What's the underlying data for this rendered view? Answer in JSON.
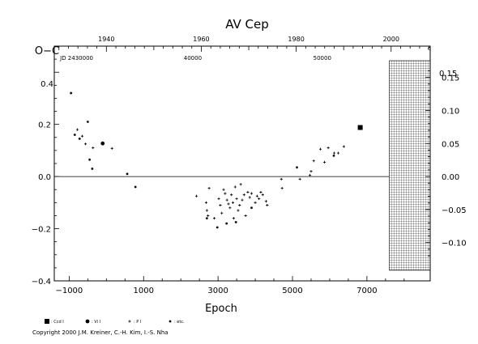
{
  "chart_data": {
    "type": "scatter",
    "title": "AV Cep",
    "xlabel": "Epoch",
    "ylabel": "O−C",
    "xlim": [
      -1400,
      8700
    ],
    "ylim": [
      -0.4,
      0.5
    ],
    "x_ticks": [
      {
        "value": -1000,
        "label": "−1000"
      },
      {
        "value": 1000,
        "label": "1000"
      },
      {
        "value": 3000,
        "label": "3000"
      },
      {
        "value": 5000,
        "label": "5000"
      },
      {
        "value": 7000,
        "label": "7000"
      }
    ],
    "y_ticks": [
      {
        "value": -0.4,
        "label": "−0.4"
      },
      {
        "value": -0.2,
        "label": "−0.2"
      },
      {
        "value": 0.0,
        "label": "0.0"
      },
      {
        "value": 0.2,
        "label": "0.2"
      },
      {
        "value": 0.4,
        "label": "0.4"
      }
    ],
    "top_year_ticks": [
      {
        "epoch": 0,
        "label": "1940"
      },
      {
        "epoch": 2550,
        "label": "1960"
      },
      {
        "epoch": 5100,
        "label": "1980"
      },
      {
        "epoch": 7650,
        "label": "2000"
      }
    ],
    "jd_labels": [
      {
        "epoch": -800,
        "label": "JD 2430000"
      },
      {
        "epoch": 2320,
        "label": "40000"
      },
      {
        "epoch": 5800,
        "label": "50000"
      }
    ],
    "right_axis": {
      "ticks": [
        {
          "value": -0.1,
          "label": "−0.10"
        },
        {
          "value": -0.05,
          "label": "−0.05"
        },
        {
          "value": 0.0,
          "label": "0.00"
        },
        {
          "value": 0.05,
          "label": "0.05"
        },
        {
          "value": 0.1,
          "label": "0.10"
        },
        {
          "value": 0.15,
          "label": "0.15"
        }
      ],
      "marker_labels": {
        "left": "0.4",
        "right": "0.15"
      }
    },
    "top_axis_marker": "d",
    "hatched_region": {
      "x_from": 7600,
      "x_to": 8700
    },
    "zero_line": 0.0,
    "series": [
      {
        "name": "CCD",
        "marker": "square",
        "points": [
          [
            6820,
            0.188
          ]
        ]
      },
      {
        "name": "VIS",
        "marker": "dot",
        "points": [
          [
            -100,
            0.127
          ]
        ]
      },
      {
        "name": "PE",
        "marker": "plus",
        "points": [
          [
            -780,
            0.18
          ],
          [
            -650,
            0.155
          ],
          [
            -560,
            0.125
          ],
          [
            -360,
            0.11
          ],
          [
            150,
            0.108
          ],
          [
            2420,
            -0.075
          ],
          [
            2680,
            -0.1
          ],
          [
            2700,
            -0.13
          ],
          [
            2730,
            -0.15
          ],
          [
            2760,
            -0.045
          ],
          [
            2900,
            -0.16
          ],
          [
            3020,
            -0.085
          ],
          [
            3060,
            -0.11
          ],
          [
            3100,
            -0.14
          ],
          [
            3150,
            -0.05
          ],
          [
            3190,
            -0.065
          ],
          [
            3240,
            -0.09
          ],
          [
            3280,
            -0.105
          ],
          [
            3320,
            -0.12
          ],
          [
            3360,
            -0.07
          ],
          [
            3400,
            -0.1
          ],
          [
            3420,
            -0.16
          ],
          [
            3460,
            -0.04
          ],
          [
            3500,
            -0.085
          ],
          [
            3540,
            -0.13
          ],
          [
            3580,
            -0.11
          ],
          [
            3610,
            -0.03
          ],
          [
            3650,
            -0.09
          ],
          [
            3700,
            -0.07
          ],
          [
            3740,
            -0.15
          ],
          [
            3800,
            -0.06
          ],
          [
            3850,
            -0.08
          ],
          [
            3900,
            -0.065
          ],
          [
            4000,
            -0.1
          ],
          [
            4050,
            -0.075
          ],
          [
            4100,
            -0.085
          ],
          [
            4150,
            -0.06
          ],
          [
            4200,
            -0.07
          ],
          [
            4290,
            -0.095
          ],
          [
            4320,
            -0.11
          ],
          [
            4700,
            -0.01
          ],
          [
            4720,
            -0.045
          ],
          [
            5200,
            -0.01
          ],
          [
            5470,
            0.005
          ],
          [
            5500,
            0.02
          ],
          [
            5570,
            0.06
          ],
          [
            5750,
            0.105
          ],
          [
            5860,
            0.055
          ],
          [
            5960,
            0.11
          ],
          [
            6120,
            0.09
          ],
          [
            6230,
            0.09
          ],
          [
            6380,
            0.115
          ]
        ]
      },
      {
        "name": "etc.",
        "marker": "star",
        "points": [
          [
            -950,
            0.32
          ],
          [
            -850,
            0.16
          ],
          [
            -720,
            0.145
          ],
          [
            -500,
            0.21
          ],
          [
            -450,
            0.065
          ],
          [
            -380,
            0.03
          ],
          [
            560,
            0.01
          ],
          [
            780,
            -0.04
          ],
          [
            2700,
            -0.16
          ],
          [
            2980,
            -0.195
          ],
          [
            3230,
            -0.18
          ],
          [
            3480,
            -0.175
          ],
          [
            3900,
            -0.12
          ],
          [
            5120,
            0.035
          ],
          [
            6110,
            0.08
          ]
        ]
      }
    ],
    "legend": {
      "placement": "bottom-left",
      "entries": [
        {
          "marker": "square",
          "label": ": Ccd I"
        },
        {
          "marker": "dot",
          "label": ": Vi I"
        },
        {
          "marker": "plus",
          "label": ": P I"
        },
        {
          "marker": "star",
          "label": ": etc."
        }
      ]
    }
  },
  "copyright": "Copyright 2000 J.M. Kreiner, C.-H. Kim, I.-S. Nha"
}
